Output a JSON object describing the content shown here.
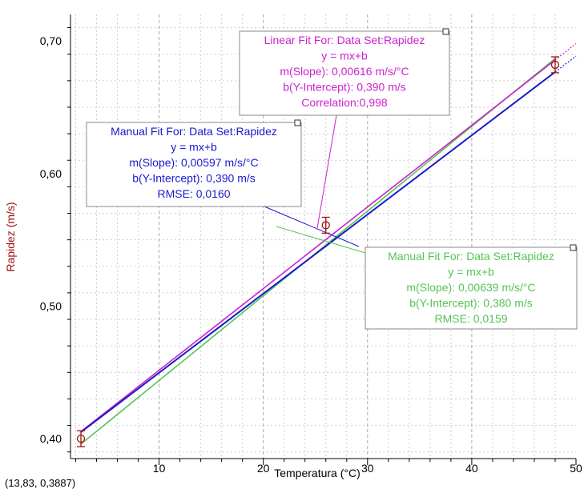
{
  "chart_data": {
    "type": "scatter",
    "xlabel": "Temperatura (°C)",
    "ylabel": "Rapidez (m/s)",
    "xlim": [
      1.5,
      50
    ],
    "ylim": [
      0.385,
      0.72
    ],
    "x_ticks": [
      10,
      20,
      30,
      40,
      50
    ],
    "y_ticks": [
      0.4,
      0.5,
      0.6,
      0.7
    ],
    "x_tick_labels": [
      "10",
      "20",
      "30",
      "40",
      "50"
    ],
    "y_tick_labels": [
      "0,40",
      "0,50",
      "0,60",
      "0,70"
    ],
    "grid": true,
    "colors": {
      "data": "#a01010",
      "linear_fit": "#cc22cc",
      "manual_fit_blue": "#1a1acc",
      "manual_fit_green": "#55c455",
      "axis_label": "#a01010",
      "grid": "#b0b0b0"
    },
    "series": [
      {
        "name": "Rapidez",
        "points": [
          {
            "x": 2.5,
            "y": 0.4,
            "err": 0.006
          },
          {
            "x": 26.0,
            "y": 0.561,
            "err": 0.006
          },
          {
            "x": 48.0,
            "y": 0.682,
            "err": 0.006
          }
        ]
      }
    ],
    "fits": [
      {
        "id": "linear",
        "color": "#cc22cc",
        "slope": 0.00616,
        "intercept": 0.39,
        "x_range": [
          2.5,
          50
        ],
        "lines": [
          "Linear Fit For:  Data Set:Rapidez",
          "y = mx+b",
          "m(Slope): 0,00616 m/s/°C",
          "b(Y-Intercept): 0,390 m/s",
          "Correlation:0,998"
        ]
      },
      {
        "id": "manual-blue",
        "color": "#1a1acc",
        "slope": 0.00597,
        "intercept": 0.39,
        "x_range": [
          2.5,
          50
        ],
        "lines": [
          "Manual Fit For:  Data Set:Rapidez",
          "y = mx+b",
          "m(Slope): 0,00597 m/s/°C",
          "b(Y-Intercept): 0,390 m/s",
          "RMSE: 0,0160"
        ]
      },
      {
        "id": "manual-green",
        "color": "#55c455",
        "slope": 0.00639,
        "intercept": 0.38,
        "x_range": [
          2.5,
          48
        ],
        "lines": [
          "Manual Fit For:  Data Set:Rapidez",
          "y = mx+b",
          "m(Slope): 0,00639 m/s/°C",
          "b(Y-Intercept): 0,380 m/s",
          "RMSE: 0,0159"
        ]
      }
    ]
  },
  "status": {
    "coordinates": "(13,83, 0,3887)"
  }
}
